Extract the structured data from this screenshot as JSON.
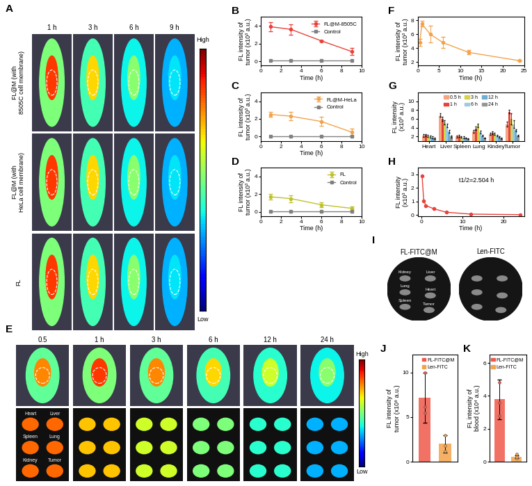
{
  "image_panels": [
    {
      "panel": "A",
      "columns": [
        "1 h",
        "3 h",
        "6 h",
        "9 h"
      ],
      "rows": [
        "FL@M (with\n8505C cell membrane)",
        "FL@M (with\nHeLa cell membrane)",
        "FL"
      ],
      "colorbar": [
        "High",
        "Low"
      ]
    },
    {
      "panel": "E",
      "columns": [
        "0.5",
        "1 h",
        "3 h",
        "6 h",
        "12 h",
        "24 h"
      ],
      "organs": [
        "Heart",
        "Liver",
        "Spleen",
        "Lung",
        "Kidney",
        "Tumor"
      ],
      "colorbar": [
        "High",
        "Low"
      ]
    },
    {
      "panel": "I",
      "columns": [
        "FL-FITC@M",
        "Len-FITC"
      ],
      "organs": [
        "Kidney",
        "Liver",
        "Lung",
        "Heart",
        "Spleen",
        "Tumor"
      ]
    }
  ],
  "chart_data": [
    {
      "panel": "B",
      "type": "line",
      "xlabel": "Time (h)",
      "ylabel": "FL intensity of\ntumor (x10³ a.u.)",
      "x": [
        1,
        3,
        6,
        9
      ],
      "series": [
        {
          "name": "FL@M-8505C",
          "color": "#e8423a",
          "marker": "circle",
          "values": [
            3.9,
            3.6,
            2.3,
            1.1
          ],
          "errors": [
            0.5,
            0.6,
            0.1,
            0.4
          ]
        },
        {
          "name": "Control",
          "color": "#808080",
          "marker": "square",
          "values": [
            0.05,
            0.05,
            0.05,
            0.05
          ]
        }
      ],
      "xlim": [
        0,
        10
      ],
      "xticks": [
        0,
        2,
        4,
        6,
        8,
        10
      ],
      "ylim": [
        -0.5,
        5
      ],
      "yticks": [
        0,
        2,
        4
      ],
      "legend": "upper right"
    },
    {
      "panel": "C",
      "type": "line",
      "xlabel": "Time (h)",
      "ylabel": "FL intensity of\ntumor (x10³ a.u.)",
      "x": [
        1,
        3,
        6,
        9
      ],
      "series": [
        {
          "name": "FL@M-HeLa",
          "color": "#f4a24a",
          "marker": "circle",
          "values": [
            2.5,
            2.3,
            1.7,
            0.5
          ],
          "errors": [
            0.3,
            0.5,
            0.5,
            0.4
          ]
        },
        {
          "name": "Control",
          "color": "#808080",
          "marker": "square",
          "values": [
            0.05,
            0.05,
            0.05,
            0.05
          ]
        }
      ],
      "xlim": [
        0,
        10
      ],
      "xticks": [
        0,
        2,
        4,
        6,
        8,
        10
      ],
      "ylim": [
        -0.5,
        5
      ],
      "yticks": [
        0,
        2,
        4
      ],
      "legend": "upper right"
    },
    {
      "panel": "D",
      "type": "line",
      "xlabel": "Time (h)",
      "ylabel": "FL intensity of\ntumor (x10³ a.u.)",
      "x": [
        1,
        3,
        6,
        9
      ],
      "series": [
        {
          "name": "FL",
          "color": "#bfc12a",
          "marker": "circle",
          "values": [
            1.7,
            1.5,
            0.8,
            0.4
          ],
          "errors": [
            0.3,
            0.4,
            0.3,
            0.2
          ]
        },
        {
          "name": "Control",
          "color": "#808080",
          "marker": "square",
          "values": [
            0.05,
            0.05,
            0.05,
            0.05
          ]
        }
      ],
      "xlim": [
        0,
        10
      ],
      "xticks": [
        0,
        2,
        4,
        6,
        8,
        10
      ],
      "ylim": [
        -0.5,
        5
      ],
      "yticks": [
        0,
        2,
        4
      ],
      "legend": "upper right"
    },
    {
      "panel": "F",
      "type": "line",
      "xlabel": "Time (h)",
      "ylabel": "FL intensity of\ntumor (x10³ a.u.)",
      "x": [
        0.5,
        1,
        3,
        6,
        12,
        24
      ],
      "values": [
        4.8,
        7.5,
        6.0,
        4.8,
        3.4,
        2.2
      ],
      "errors": [
        0.5,
        0.4,
        1.2,
        0.8,
        0.3,
        0.1
      ],
      "color": "#f4a24a",
      "marker": "circle",
      "xlim": [
        0,
        25
      ],
      "xticks": [
        0,
        5,
        10,
        15,
        20,
        25
      ],
      "ylim": [
        1.5,
        8.5
      ],
      "yticks": [
        2,
        4,
        6,
        8
      ]
    },
    {
      "panel": "G",
      "type": "bar",
      "ylabel": "FL intensity\n(x10³ a.u.)",
      "categories": [
        "Heart",
        "Liver",
        "Spleen",
        "Lung",
        "Kindey",
        "Tumor"
      ],
      "series": [
        {
          "name": "0.5 h",
          "color": "#f4a582",
          "values": [
            2.2,
            6.8,
            2.0,
            3.2,
            2.6,
            4.8
          ],
          "errors": [
            0.3,
            0.4,
            0.2,
            0.3,
            0.3,
            0.5
          ]
        },
        {
          "name": "1 h",
          "color": "#e8423a",
          "values": [
            2.3,
            6.0,
            2.1,
            3.8,
            2.8,
            7.6
          ],
          "errors": [
            0.3,
            0.5,
            0.2,
            0.4,
            0.3,
            0.4
          ]
        },
        {
          "name": "3 h",
          "color": "#d4d44a",
          "values": [
            2.1,
            5.2,
            1.9,
            4.5,
            2.6,
            6.0
          ],
          "errors": [
            0.2,
            0.5,
            0.2,
            0.4,
            0.3,
            1.2
          ]
        },
        {
          "name": "6 h",
          "color": "#9ecae1",
          "values": [
            2.0,
            4.5,
            1.8,
            3.0,
            2.2,
            4.8
          ],
          "errors": [
            0.2,
            0.4,
            0.2,
            0.3,
            0.2,
            0.8
          ]
        },
        {
          "name": "12 h",
          "color": "#6baed6",
          "values": [
            1.8,
            3.2,
            1.7,
            2.2,
            1.9,
            3.4
          ],
          "errors": [
            0.2,
            0.3,
            0.1,
            0.2,
            0.2,
            0.3
          ]
        },
        {
          "name": "24 h",
          "color": "#969696",
          "values": [
            1.6,
            2.0,
            1.5,
            1.7,
            1.6,
            2.2
          ],
          "errors": [
            0.1,
            0.2,
            0.1,
            0.1,
            0.1,
            0.1
          ]
        }
      ],
      "ylim": [
        1,
        12
      ],
      "yticks": [
        2,
        4,
        6,
        8,
        10
      ],
      "legend": "upper center"
    },
    {
      "panel": "H",
      "type": "line",
      "xlabel": "Time (h)",
      "ylabel": "FL intensity\n(x10³ a.u.)",
      "x": [
        0.083,
        0.5,
        1,
        3,
        6,
        12,
        24
      ],
      "values": [
        2.9,
        1.05,
        0.7,
        0.45,
        0.2,
        0.06,
        0.02
      ],
      "color": "#e8423a",
      "marker": "circle",
      "annotation": "t1/2=2.504 h",
      "xlim": [
        -1,
        25
      ],
      "xticks": [
        0,
        10,
        20
      ],
      "ylim": [
        -0.1,
        3.5
      ],
      "yticks": [
        0,
        1,
        2,
        3
      ]
    },
    {
      "panel": "J",
      "type": "bar",
      "ylabel": "FL intensity of\ntumor (x10⁸ a.u.)",
      "categories": [
        "FL-FITC@M",
        "Len-FITC"
      ],
      "values": [
        7.2,
        2.0
      ],
      "errors": [
        2.8,
        1.0
      ],
      "points": [
        [
          5.5,
          10,
          6.2
        ],
        [
          1.2,
          3.0,
          1.8
        ]
      ],
      "colors": [
        "#f0584a",
        "#f4a24a"
      ],
      "ylim": [
        0,
        12
      ],
      "yticks": [
        0,
        5,
        10
      ],
      "legend": "upper right",
      "tick_labels": "y"
    },
    {
      "panel": "K",
      "type": "bar",
      "ylabel": "FL intensity of\nblood (x10⁴ a.u.)",
      "categories": [
        "FL-FITC@M",
        "Len-FITC"
      ],
      "values": [
        3.8,
        0.3
      ],
      "errors": [
        1.2,
        0.1
      ],
      "points": [
        [
          4.8,
          2.8,
          3.6
        ],
        [
          0.45,
          0.2,
          0.3
        ]
      ],
      "colors": [
        "#f0584a",
        "#f4a24a"
      ],
      "ylim": [
        0,
        6.5
      ],
      "yticks": [
        0,
        2,
        4,
        6
      ],
      "legend": "upper right",
      "tick_labels": "y"
    }
  ]
}
